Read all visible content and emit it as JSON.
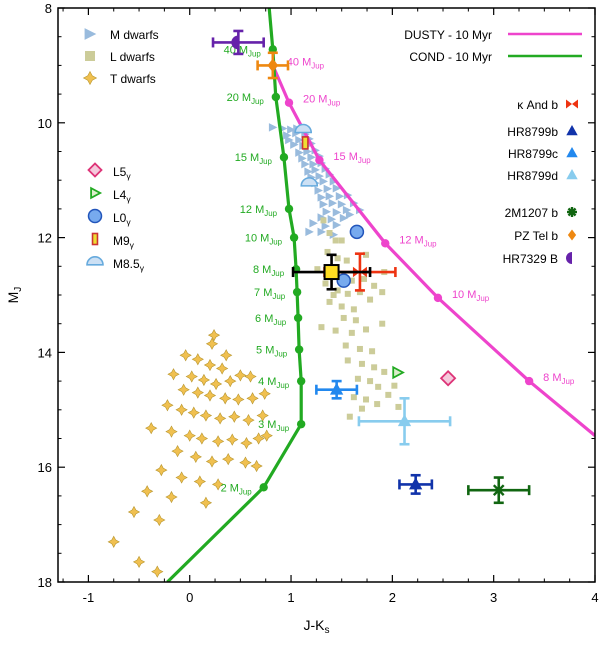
{
  "chart_data": {
    "type": "scatter",
    "title": "",
    "xlabel": "J-K",
    "xlabel_sub": "s",
    "ylabel": "M",
    "ylabel_sub": "J",
    "xlim": [
      -1.3,
      4.0
    ],
    "ylim": [
      18.0,
      8.0
    ],
    "y_inverted": true,
    "x_ticks": [
      -1,
      0,
      1,
      2,
      3,
      4
    ],
    "x_tick_labels": [
      "-1",
      "0",
      "1",
      "2",
      "3",
      "4"
    ],
    "y_ticks": [
      8,
      10,
      12,
      14,
      16,
      18
    ],
    "y_tick_labels": [
      "8",
      "10",
      "12",
      "14",
      "16",
      "18"
    ],
    "colors": {
      "dusty": "#ee44cc",
      "cond": "#22aa22",
      "m_dwarf": "#99bbdd",
      "l_dwarf": "#cccc99",
      "t_dwarf": "#ddbb55",
      "kappa_and": "#ee3311",
      "hr8799b": "#1133aa",
      "hr8799c": "#2288ee",
      "hr8799d": "#88ccee",
      "m2m1207": "#116611",
      "pztel": "#ee8811",
      "hr7329": "#6622aa",
      "l5": "#dd3377",
      "l4": "#22aa22",
      "l0": "#2255bb",
      "m9": "#cc3333",
      "m85": "#66aadd"
    },
    "legend_topleft": [
      {
        "label": "M dwarfs",
        "marker": "triangle-right",
        "color_key": "m_dwarf"
      },
      {
        "label": "L dwarfs",
        "marker": "square",
        "color_key": "l_dwarf"
      },
      {
        "label": "T dwarfs",
        "marker": "star4",
        "color_key": "t_dwarf"
      }
    ],
    "legend_young": [
      {
        "label": "L5",
        "sub": "γ",
        "marker": "diamond-open",
        "color_key": "l5"
      },
      {
        "label": "L4",
        "sub": "γ",
        "marker": "triangle-right-open",
        "color_key": "l4"
      },
      {
        "label": "L0",
        "sub": "γ",
        "marker": "circle",
        "color_key": "l0"
      },
      {
        "label": "M9",
        "sub": "γ",
        "marker": "rect",
        "color_key": "m9"
      },
      {
        "label": "M8.5",
        "sub": "γ",
        "marker": "half-circle",
        "color_key": "m85"
      }
    ],
    "legend_models": [
      {
        "label": "DUSTY - 10 Myr",
        "color_key": "dusty"
      },
      {
        "label": "COND - 10 Myr",
        "color_key": "cond"
      }
    ],
    "legend_objects": [
      {
        "label": "κ And b",
        "marker": "bowtie",
        "color_key": "kappa_and"
      },
      {
        "label": "HR8799b",
        "marker": "triangle",
        "color_key": "hr8799b"
      },
      {
        "label": "HR8799c",
        "marker": "triangle",
        "color_key": "hr8799c"
      },
      {
        "label": "HR8799d",
        "marker": "triangle",
        "color_key": "hr8799d"
      },
      {
        "label": "2M1207 b",
        "marker": "asterisk",
        "color_key": "m2m1207"
      },
      {
        "label": "PZ Tel b",
        "marker": "diamond",
        "color_key": "pztel"
      },
      {
        "label": "HR7329 B",
        "marker": "half-circle-left",
        "color_key": "hr7329"
      }
    ],
    "series": [
      {
        "name": "DUSTY - 10 Myr",
        "color_key": "dusty",
        "points": [
          {
            "x": 0.82,
            "y": 9.0,
            "label": "40 M",
            "sub": "Jup"
          },
          {
            "x": 0.98,
            "y": 9.65,
            "label": "20 M",
            "sub": "Jup"
          },
          {
            "x": 1.28,
            "y": 10.65,
            "label": "15 M",
            "sub": "Jup"
          },
          {
            "x": 1.93,
            "y": 12.1,
            "label": "12 M",
            "sub": "Jup"
          },
          {
            "x": 2.45,
            "y": 13.05,
            "label": "10 M",
            "sub": "Jup"
          },
          {
            "x": 3.35,
            "y": 14.5,
            "label": "8 M",
            "sub": "Jup"
          },
          {
            "x": 4.0,
            "y": 15.45,
            "label": "",
            "sub": ""
          }
        ]
      },
      {
        "name": "COND - 10 Myr",
        "color_key": "cond",
        "points": [
          {
            "x": 0.78,
            "y": 7.9,
            "label": "",
            "sub": ""
          },
          {
            "x": 0.82,
            "y": 8.72,
            "label": "40 M",
            "sub": "Jup"
          },
          {
            "x": 0.85,
            "y": 9.55,
            "label": "20 M",
            "sub": "Jup"
          },
          {
            "x": 0.93,
            "y": 10.6,
            "label": "15 M",
            "sub": "Jup"
          },
          {
            "x": 0.98,
            "y": 11.5,
            "label": "12 M",
            "sub": "Jup"
          },
          {
            "x": 1.03,
            "y": 12.0,
            "label": "10 M",
            "sub": "Jup"
          },
          {
            "x": 1.05,
            "y": 12.55,
            "label": "8 M",
            "sub": "Jup"
          },
          {
            "x": 1.06,
            "y": 12.95,
            "label": "7 M",
            "sub": "Jup"
          },
          {
            "x": 1.07,
            "y": 13.4,
            "label": "6 M",
            "sub": "Jup"
          },
          {
            "x": 1.08,
            "y": 13.95,
            "label": "5 M",
            "sub": "Jup"
          },
          {
            "x": 1.1,
            "y": 14.5,
            "label": "4 M",
            "sub": "Jup"
          },
          {
            "x": 1.1,
            "y": 15.25,
            "label": "3 M",
            "sub": "Jup"
          },
          {
            "x": 0.73,
            "y": 16.35,
            "label": "2 M",
            "sub": "Jup"
          },
          {
            "x": -0.22,
            "y": 18.0,
            "label": "",
            "sub": ""
          }
        ]
      }
    ],
    "m_dwarfs": [
      [
        0.82,
        10.08
      ],
      [
        0.92,
        10.1
      ],
      [
        1.0,
        10.12
      ],
      [
        1.06,
        10.1
      ],
      [
        0.96,
        10.22
      ],
      [
        1.05,
        10.18
      ],
      [
        1.14,
        10.2
      ],
      [
        0.98,
        10.3
      ],
      [
        1.08,
        10.3
      ],
      [
        1.18,
        10.28
      ],
      [
        1.03,
        10.38
      ],
      [
        1.12,
        10.4
      ],
      [
        1.2,
        10.36
      ],
      [
        1.08,
        10.52
      ],
      [
        1.16,
        10.5
      ],
      [
        1.24,
        10.48
      ],
      [
        1.11,
        10.62
      ],
      [
        1.2,
        10.6
      ],
      [
        1.28,
        10.58
      ],
      [
        1.14,
        10.72
      ],
      [
        1.22,
        10.72
      ],
      [
        1.3,
        10.7
      ],
      [
        1.17,
        10.85
      ],
      [
        1.24,
        10.82
      ],
      [
        1.34,
        10.8
      ],
      [
        1.2,
        10.95
      ],
      [
        1.28,
        10.93
      ],
      [
        1.38,
        10.9
      ],
      [
        1.24,
        11.05
      ],
      [
        1.32,
        11.02
      ],
      [
        1.42,
        11.02
      ],
      [
        1.27,
        11.18
      ],
      [
        1.36,
        11.15
      ],
      [
        1.45,
        11.14
      ],
      [
        1.3,
        11.3
      ],
      [
        1.38,
        11.28
      ],
      [
        1.48,
        11.28
      ],
      [
        1.56,
        11.26
      ],
      [
        1.32,
        11.42
      ],
      [
        1.41,
        11.4
      ],
      [
        1.5,
        11.42
      ],
      [
        1.62,
        11.4
      ],
      [
        1.35,
        11.55
      ],
      [
        1.45,
        11.56
      ],
      [
        1.55,
        11.52
      ],
      [
        1.3,
        11.65
      ],
      [
        1.4,
        11.68
      ],
      [
        1.52,
        11.66
      ],
      [
        1.22,
        11.75
      ],
      [
        1.34,
        11.8
      ],
      [
        1.45,
        11.78
      ],
      [
        1.18,
        11.9
      ],
      [
        1.3,
        11.9
      ],
      [
        1.42,
        11.95
      ],
      [
        1.58,
        11.6
      ],
      [
        1.68,
        11.52
      ]
    ],
    "l_dwarfs": [
      [
        1.32,
        11.7
      ],
      [
        1.38,
        11.92
      ],
      [
        1.44,
        12.05
      ],
      [
        1.36,
        12.25
      ],
      [
        1.46,
        12.36
      ],
      [
        1.55,
        12.4
      ],
      [
        1.26,
        12.55
      ],
      [
        1.42,
        12.6
      ],
      [
        1.52,
        12.65
      ],
      [
        1.6,
        12.75
      ],
      [
        1.72,
        12.72
      ],
      [
        1.82,
        12.84
      ],
      [
        1.34,
        12.8
      ],
      [
        1.46,
        12.92
      ],
      [
        1.56,
        12.98
      ],
      [
        1.68,
        12.95
      ],
      [
        1.78,
        13.08
      ],
      [
        1.9,
        12.95
      ],
      [
        1.38,
        13.12
      ],
      [
        1.5,
        13.2
      ],
      [
        1.62,
        13.25
      ],
      [
        1.52,
        13.4
      ],
      [
        1.64,
        13.44
      ],
      [
        1.3,
        13.56
      ],
      [
        1.44,
        13.62
      ],
      [
        1.6,
        13.66
      ],
      [
        1.74,
        13.6
      ],
      [
        1.9,
        13.5
      ],
      [
        1.54,
        13.88
      ],
      [
        1.68,
        13.94
      ],
      [
        1.8,
        13.98
      ],
      [
        1.56,
        14.14
      ],
      [
        1.7,
        14.2
      ],
      [
        1.82,
        14.26
      ],
      [
        1.92,
        14.34
      ],
      [
        1.66,
        14.46
      ],
      [
        1.78,
        14.5
      ],
      [
        1.86,
        14.6
      ],
      [
        1.62,
        14.78
      ],
      [
        1.74,
        14.82
      ],
      [
        1.85,
        14.9
      ],
      [
        1.58,
        15.12
      ],
      [
        1.7,
        14.98
      ],
      [
        1.96,
        14.74
      ],
      [
        2.02,
        14.58
      ],
      [
        1.42,
        13.0
      ],
      [
        1.74,
        12.3
      ],
      [
        1.92,
        12.6
      ],
      [
        1.5,
        12.05
      ],
      [
        2.06,
        14.95
      ]
    ],
    "t_dwarfs": [
      [
        0.22,
        13.85
      ],
      [
        -0.04,
        14.05
      ],
      [
        0.08,
        14.12
      ],
      [
        0.2,
        14.22
      ],
      [
        0.32,
        14.28
      ],
      [
        -0.16,
        14.38
      ],
      [
        0.02,
        14.42
      ],
      [
        0.14,
        14.48
      ],
      [
        0.26,
        14.55
      ],
      [
        0.4,
        14.5
      ],
      [
        0.5,
        14.4
      ],
      [
        0.6,
        14.42
      ],
      [
        -0.06,
        14.65
      ],
      [
        0.08,
        14.7
      ],
      [
        0.2,
        14.75
      ],
      [
        0.35,
        14.8
      ],
      [
        0.48,
        14.82
      ],
      [
        0.62,
        14.8
      ],
      [
        0.74,
        14.72
      ],
      [
        -0.22,
        14.92
      ],
      [
        -0.08,
        15.0
      ],
      [
        0.04,
        15.05
      ],
      [
        0.16,
        15.1
      ],
      [
        0.3,
        15.15
      ],
      [
        0.44,
        15.12
      ],
      [
        0.58,
        15.18
      ],
      [
        0.72,
        15.1
      ],
      [
        -0.38,
        15.32
      ],
      [
        -0.18,
        15.38
      ],
      [
        0.0,
        15.45
      ],
      [
        0.12,
        15.5
      ],
      [
        0.28,
        15.55
      ],
      [
        0.42,
        15.52
      ],
      [
        0.56,
        15.58
      ],
      [
        0.68,
        15.5
      ],
      [
        0.76,
        15.45
      ],
      [
        -0.12,
        15.72
      ],
      [
        0.06,
        15.82
      ],
      [
        0.22,
        15.9
      ],
      [
        0.38,
        15.86
      ],
      [
        0.55,
        15.92
      ],
      [
        0.66,
        15.98
      ],
      [
        -0.28,
        16.05
      ],
      [
        -0.08,
        16.18
      ],
      [
        0.1,
        16.25
      ],
      [
        0.28,
        16.3
      ],
      [
        -0.42,
        16.42
      ],
      [
        -0.18,
        16.52
      ],
      [
        0.16,
        16.62
      ],
      [
        -0.55,
        16.78
      ],
      [
        -0.3,
        16.92
      ],
      [
        -0.75,
        17.3
      ],
      [
        -0.5,
        17.65
      ],
      [
        -0.32,
        17.82
      ],
      [
        0.24,
        13.7
      ],
      [
        0.36,
        14.05
      ]
    ],
    "objects": [
      {
        "name": "κ And b",
        "x": 1.68,
        "y": 12.6,
        "xerr": 0.35,
        "yerr": 0.32,
        "marker": "bowtie",
        "color_key": "kappa_and"
      },
      {
        "name": "HR8799b",
        "x": 2.23,
        "y": 16.3,
        "xerr": 0.16,
        "yerr": 0.16,
        "marker": "triangle",
        "color_key": "hr8799b"
      },
      {
        "name": "HR8799c",
        "x": 1.45,
        "y": 14.65,
        "xerr": 0.2,
        "yerr": 0.15,
        "marker": "triangle",
        "color_key": "hr8799c"
      },
      {
        "name": "HR8799d",
        "x": 2.12,
        "y": 15.2,
        "xerr": 0.45,
        "yerr": 0.4,
        "marker": "triangle",
        "color_key": "hr8799d"
      },
      {
        "name": "2M1207 b",
        "x": 3.05,
        "y": 16.4,
        "xerr": 0.3,
        "yerr": 0.22,
        "marker": "asterisk",
        "color_key": "m2m1207"
      },
      {
        "name": "PZ Tel b",
        "x": 0.82,
        "y": 9.0,
        "xerr": 0.15,
        "yerr": 0.22,
        "marker": "diamond",
        "color_key": "pztel"
      },
      {
        "name": "HR7329 B",
        "x": 0.48,
        "y": 8.6,
        "xerr": 0.25,
        "yerr": 0.2,
        "marker": "half-circle-left",
        "color_key": "hr7329"
      },
      {
        "name": "young L5",
        "x": 2.55,
        "y": 14.45,
        "xerr": 0,
        "yerr": 0,
        "marker": "diamond-open",
        "color_key": "l5"
      },
      {
        "name": "young L4",
        "x": 2.05,
        "y": 14.35,
        "xerr": 0,
        "yerr": 0,
        "marker": "triangle-right-open",
        "color_key": "l4"
      },
      {
        "name": "young L0",
        "x": 1.65,
        "y": 11.9,
        "xerr": 0,
        "yerr": 0,
        "marker": "circle",
        "color_key": "l0"
      },
      {
        "name": "young L0 b",
        "x": 1.52,
        "y": 12.75,
        "xerr": 0,
        "yerr": 0,
        "marker": "circle",
        "color_key": "l0"
      },
      {
        "name": "young M9",
        "x": 1.14,
        "y": 10.35,
        "xerr": 0,
        "yerr": 0,
        "marker": "rect",
        "color_key": "m9"
      },
      {
        "name": "young M8.5",
        "x": 1.12,
        "y": 10.12,
        "xerr": 0,
        "yerr": 0,
        "marker": "half-circle",
        "color_key": "m85"
      },
      {
        "name": "young M8.5 b",
        "x": 1.18,
        "y": 11.05,
        "xerr": 0,
        "yerr": 0,
        "marker": "half-circle",
        "color_key": "m85"
      },
      {
        "name": "yellow square",
        "x": 1.4,
        "y": 12.6,
        "xerr": 0.38,
        "yerr": 0.3,
        "marker": "square-yellow",
        "color_key": "t_dwarf"
      }
    ]
  }
}
